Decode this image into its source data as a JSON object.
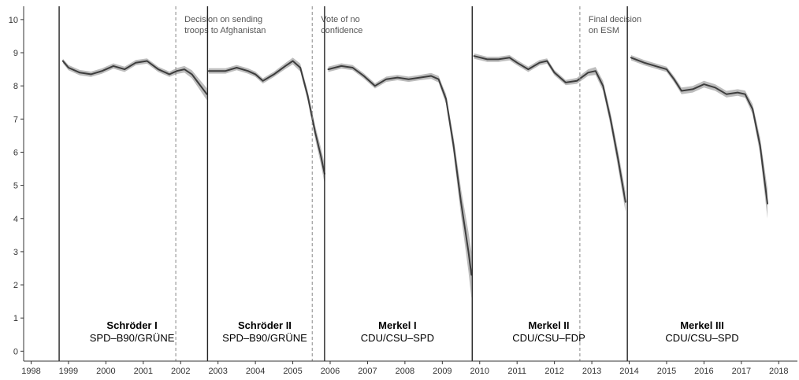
{
  "chart_data": {
    "type": "line",
    "title": "",
    "xlabel": "",
    "ylabel": "",
    "xlim": [
      1997.8,
      2018.5
    ],
    "ylim": [
      -0.3,
      10.4
    ],
    "x_ticks": [
      1998,
      1999,
      2000,
      2001,
      2002,
      2003,
      2004,
      2005,
      2006,
      2007,
      2008,
      2009,
      2010,
      2011,
      2012,
      2013,
      2014,
      2015,
      2016,
      2017,
      2018
    ],
    "y_ticks": [
      0,
      1,
      2,
      3,
      4,
      5,
      6,
      7,
      8,
      9,
      10
    ],
    "grid": false,
    "government_boundaries": [
      1998.75,
      2002.72,
      2005.85,
      2009.8,
      2013.95
    ],
    "events": [
      {
        "x": 2001.87,
        "label_lines": [
          "Decision on sending",
          "troops to Afghanistan"
        ]
      },
      {
        "x": 2005.52,
        "label_lines": [
          "Vote of no",
          "confidence"
        ]
      },
      {
        "x": 2012.68,
        "label_lines": [
          "Final decision",
          "on ESM"
        ]
      }
    ],
    "governments": [
      {
        "name": "Schröder I",
        "coalition": "SPD–B90/GRÜNE",
        "center_x": 2000.7
      },
      {
        "name": "Schröder II",
        "coalition": "SPD–B90/GRÜNE",
        "center_x": 2004.25
      },
      {
        "name": "Merkel I",
        "coalition": "CDU/CSU–SPD",
        "center_x": 2007.8
      },
      {
        "name": "Merkel II",
        "coalition": "CDU/CSU–FDP",
        "center_x": 2011.85
      },
      {
        "name": "Merkel III",
        "coalition": "CDU/CSU–SPD",
        "center_x": 2015.95
      }
    ],
    "series": [
      {
        "segment": 1,
        "x": [
          1998.85,
          1999.0,
          1999.3,
          1999.6,
          1999.9,
          2000.2,
          2000.5,
          2000.8,
          2001.1,
          2001.4,
          2001.7,
          2001.9,
          2002.1,
          2002.3,
          2002.5,
          2002.7
        ],
        "y": [
          8.75,
          8.55,
          8.4,
          8.35,
          8.45,
          8.6,
          8.5,
          8.7,
          8.75,
          8.5,
          8.35,
          8.45,
          8.5,
          8.35,
          8.05,
          7.75
        ],
        "band": [
          0.07,
          0.08,
          0.08,
          0.08,
          0.08,
          0.08,
          0.08,
          0.08,
          0.08,
          0.08,
          0.08,
          0.09,
          0.1,
          0.12,
          0.15,
          0.18
        ]
      },
      {
        "segment": 2,
        "x": [
          2002.75,
          2003.2,
          2003.5,
          2003.8,
          2004.0,
          2004.2,
          2004.5,
          2004.8,
          2005.0,
          2005.2,
          2005.4,
          2005.6,
          2005.75,
          2005.85
        ],
        "y": [
          8.45,
          8.45,
          8.55,
          8.45,
          8.35,
          8.15,
          8.35,
          8.6,
          8.75,
          8.55,
          7.7,
          6.6,
          5.9,
          5.35
        ],
        "band": [
          0.08,
          0.08,
          0.08,
          0.08,
          0.08,
          0.08,
          0.08,
          0.09,
          0.1,
          0.12,
          0.15,
          0.2,
          0.25,
          0.3
        ]
      },
      {
        "segment": 3,
        "x": [
          2005.95,
          2006.3,
          2006.6,
          2006.9,
          2007.2,
          2007.5,
          2007.8,
          2008.1,
          2008.4,
          2008.7,
          2008.9,
          2009.1,
          2009.3,
          2009.5,
          2009.7,
          2009.78
        ],
        "y": [
          8.5,
          8.6,
          8.55,
          8.3,
          8.0,
          8.2,
          8.25,
          8.2,
          8.25,
          8.3,
          8.2,
          7.6,
          6.2,
          4.5,
          3.0,
          2.3
        ],
        "band": [
          0.08,
          0.08,
          0.08,
          0.08,
          0.08,
          0.08,
          0.08,
          0.08,
          0.08,
          0.09,
          0.1,
          0.15,
          0.25,
          0.4,
          0.6,
          0.7
        ]
      },
      {
        "segment": 4,
        "x": [
          2009.85,
          2010.2,
          2010.5,
          2010.8,
          2011.0,
          2011.3,
          2011.6,
          2011.8,
          2012.0,
          2012.3,
          2012.6,
          2012.9,
          2013.1,
          2013.3,
          2013.5,
          2013.7,
          2013.9
        ],
        "y": [
          8.9,
          8.8,
          8.8,
          8.85,
          8.7,
          8.5,
          8.7,
          8.75,
          8.4,
          8.1,
          8.15,
          8.4,
          8.45,
          8.0,
          7.0,
          5.8,
          4.5
        ],
        "band": [
          0.08,
          0.08,
          0.08,
          0.08,
          0.08,
          0.08,
          0.08,
          0.08,
          0.08,
          0.08,
          0.09,
          0.1,
          0.12,
          0.15,
          0.2,
          0.25,
          0.3
        ]
      },
      {
        "segment": 5,
        "x": [
          2014.05,
          2014.4,
          2014.7,
          2015.0,
          2015.2,
          2015.4,
          2015.7,
          2016.0,
          2016.3,
          2016.6,
          2016.9,
          2017.1,
          2017.3,
          2017.5,
          2017.7
        ],
        "y": [
          8.85,
          8.7,
          8.6,
          8.5,
          8.2,
          7.85,
          7.9,
          8.05,
          7.95,
          7.75,
          7.8,
          7.75,
          7.3,
          6.2,
          4.45
        ],
        "band": [
          0.08,
          0.08,
          0.08,
          0.08,
          0.09,
          0.1,
          0.1,
          0.1,
          0.1,
          0.1,
          0.1,
          0.11,
          0.15,
          0.25,
          0.45
        ]
      }
    ]
  }
}
